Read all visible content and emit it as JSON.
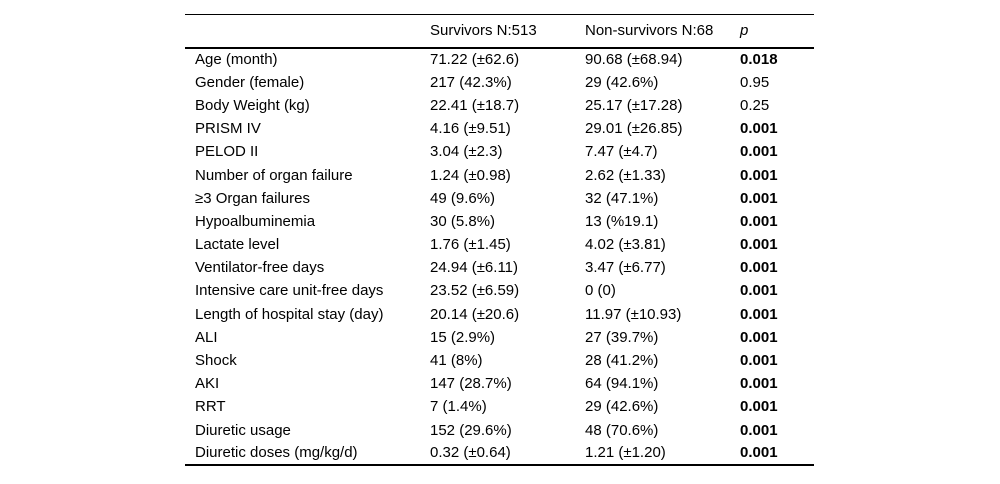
{
  "table": {
    "columns": [
      "",
      "Survivors N:513",
      "Non-survivors N:68",
      "p"
    ],
    "rows": [
      {
        "label": "Age (month)",
        "survivors": "71.22 (±62.6)",
        "non_survivors": "90.68 (±68.94)",
        "p": "0.018",
        "p_bold": true
      },
      {
        "label": "Gender (female)",
        "survivors": "217 (42.3%)",
        "non_survivors": "29 (42.6%)",
        "p": "0.95",
        "p_bold": false
      },
      {
        "label": "Body Weight (kg)",
        "survivors": "22.41 (±18.7)",
        "non_survivors": "25.17 (±17.28)",
        "p": "0.25",
        "p_bold": false
      },
      {
        "label": "PRISM IV",
        "survivors": "4.16 (±9.51)",
        "non_survivors": "29.01 (±26.85)",
        "p": "0.001",
        "p_bold": true
      },
      {
        "label": "PELOD II",
        "survivors": "3.04 (±2.3)",
        "non_survivors": "7.47 (±4.7)",
        "p": "0.001",
        "p_bold": true
      },
      {
        "label": "Number of organ failure",
        "survivors": "1.24 (±0.98)",
        "non_survivors": "2.62 (±1.33)",
        "p": "0.001",
        "p_bold": true
      },
      {
        "label": "≥3 Organ failures",
        "survivors": "49 (9.6%)",
        "non_survivors": "32 (47.1%)",
        "p": "0.001",
        "p_bold": true
      },
      {
        "label": "Hypoalbuminemia",
        "survivors": "30 (5.8%)",
        "non_survivors": "13 (%19.1)",
        "p": "0.001",
        "p_bold": true
      },
      {
        "label": "Lactate level",
        "survivors": "1.76 (±1.45)",
        "non_survivors": "4.02 (±3.81)",
        "p": "0.001",
        "p_bold": true
      },
      {
        "label": "Ventilator-free days",
        "survivors": "24.94 (±6.11)",
        "non_survivors": "3.47 (±6.77)",
        "p": "0.001",
        "p_bold": true
      },
      {
        "label": "Intensive care unit-free days",
        "survivors": "23.52 (±6.59)",
        "non_survivors": "0 (0)",
        "p": "0.001",
        "p_bold": true
      },
      {
        "label": "Length of hospital stay (day)",
        "survivors": "20.14 (±20.6)",
        "non_survivors": "11.97 (±10.93)",
        "p": "0.001",
        "p_bold": true
      },
      {
        "label": "ALI",
        "survivors": "15 (2.9%)",
        "non_survivors": "27 (39.7%)",
        "p": "0.001",
        "p_bold": true
      },
      {
        "label": "Shock",
        "survivors": "41 (8%)",
        "non_survivors": "28 (41.2%)",
        "p": "0.001",
        "p_bold": true
      },
      {
        "label": "AKI",
        "survivors": "147 (28.7%)",
        "non_survivors": "64 (94.1%)",
        "p": "0.001",
        "p_bold": true
      },
      {
        "label": "RRT",
        "survivors": "7 (1.4%)",
        "non_survivors": "29 (42.6%)",
        "p": "0.001",
        "p_bold": true
      },
      {
        "label": "Diuretic usage",
        "survivors": "152 (29.6%)",
        "non_survivors": "48 (70.6%)",
        "p": "0.001",
        "p_bold": true
      },
      {
        "label": "Diuretic doses (mg/kg/d)",
        "survivors": "0.32 (±0.64)",
        "non_survivors": "1.21 (±1.20)",
        "p": "0.001",
        "p_bold": true
      }
    ]
  }
}
